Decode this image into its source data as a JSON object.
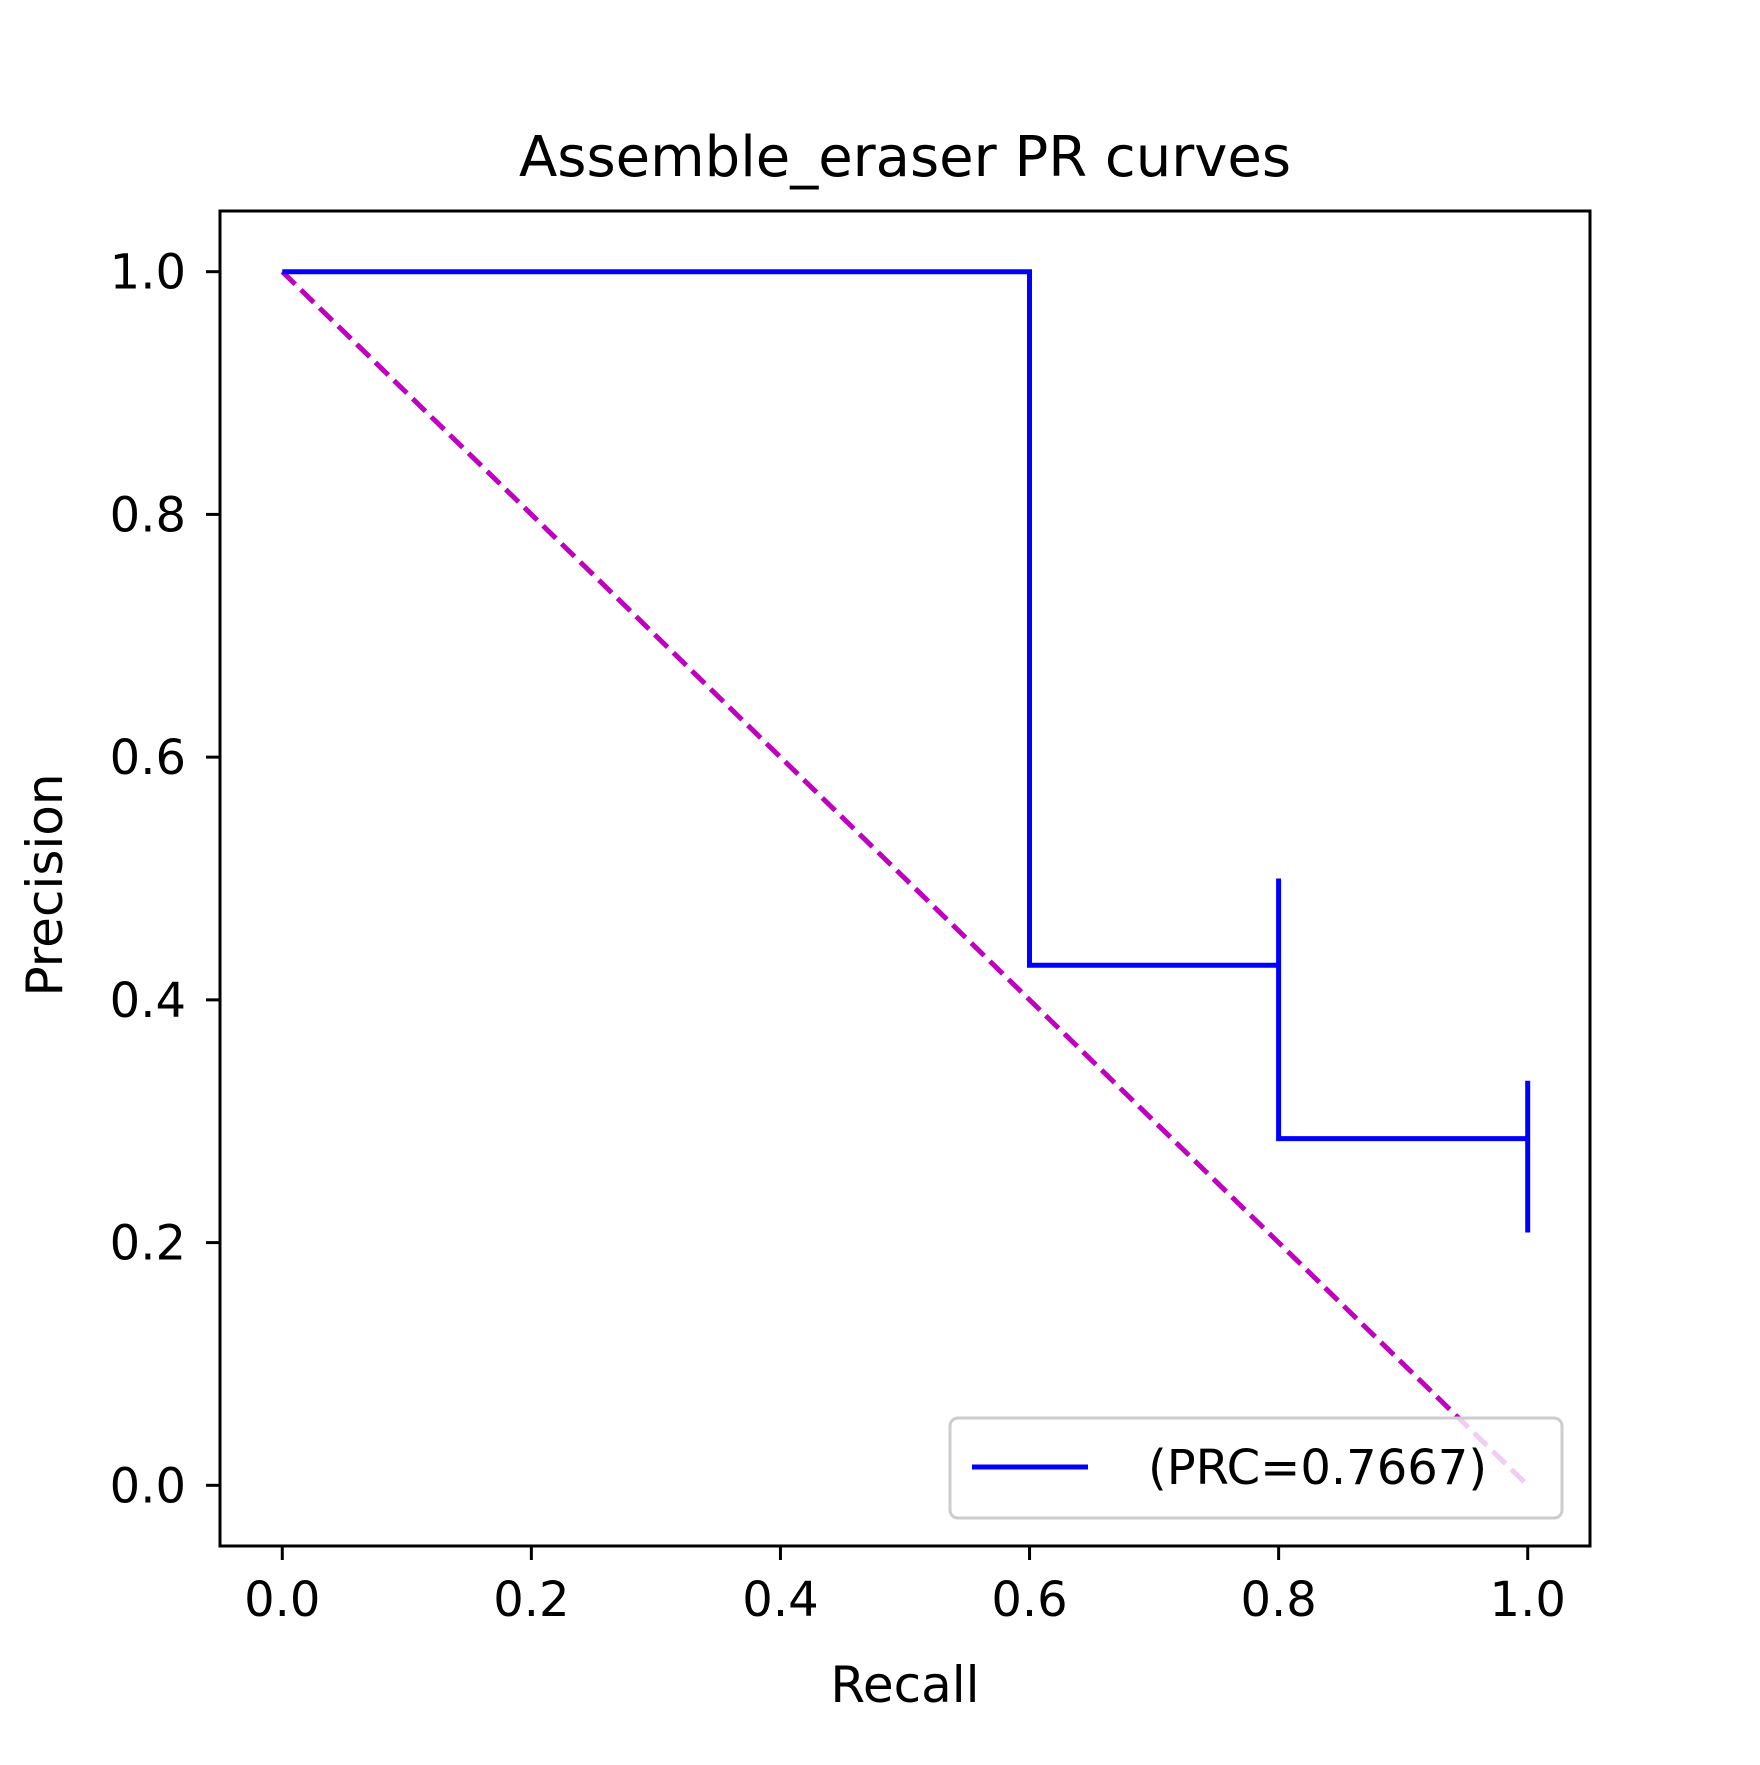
{
  "chart_data": {
    "type": "line",
    "title": "Assemble_eraser PR curves",
    "xlabel": "Recall",
    "ylabel": "Precision",
    "xlim": [
      -0.05,
      1.05
    ],
    "ylim": [
      -0.05,
      1.05
    ],
    "xticks": [
      0.0,
      0.2,
      0.4,
      0.6,
      0.8,
      1.0
    ],
    "yticks": [
      0.0,
      0.2,
      0.4,
      0.6,
      0.8,
      1.0
    ],
    "xtick_labels": [
      "0.0",
      "0.2",
      "0.4",
      "0.6",
      "0.8",
      "1.0"
    ],
    "ytick_labels": [
      "0.0",
      "0.2",
      "0.4",
      "0.6",
      "0.8",
      "1.0"
    ],
    "grid": false,
    "legend_position": "lower-right",
    "series": [
      {
        "name": "(PRC=0.7667)",
        "color": "#0000ff",
        "style": "solid",
        "x": [
          0.0,
          0.6,
          0.6,
          0.8,
          0.8,
          0.8,
          0.8,
          1.0,
          1.0,
          1.0
        ],
        "y": [
          1.0,
          1.0,
          0.4286,
          0.4286,
          0.5,
          0.4286,
          0.2857,
          0.2857,
          0.3333,
          0.2083
        ]
      },
      {
        "color": "#bf00bf",
        "style": "dashed",
        "x": [
          0.0,
          1.0
        ],
        "y": [
          1.0,
          0.0
        ]
      }
    ]
  }
}
